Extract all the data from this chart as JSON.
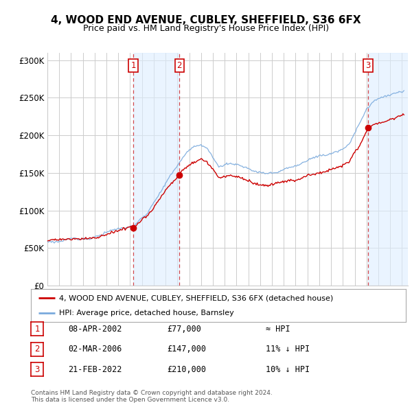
{
  "title": "4, WOOD END AVENUE, CUBLEY, SHEFFIELD, S36 6FX",
  "subtitle": "Price paid vs. HM Land Registry's House Price Index (HPI)",
  "ylabel_ticks": [
    "£0",
    "£50K",
    "£100K",
    "£150K",
    "£200K",
    "£250K",
    "£300K"
  ],
  "ytick_values": [
    0,
    50000,
    100000,
    150000,
    200000,
    250000,
    300000
  ],
  "ylim": [
    0,
    310000
  ],
  "xlim_start": 1995.0,
  "xlim_end": 2025.5,
  "transactions": [
    {
      "label": "1",
      "date": "08-APR-2002",
      "price": 77000,
      "year": 2002.27,
      "hpi_rel": "≈ HPI"
    },
    {
      "label": "2",
      "date": "02-MAR-2006",
      "price": 147000,
      "year": 2006.17,
      "hpi_rel": "11% ↓ HPI"
    },
    {
      "label": "3",
      "date": "21-FEB-2022",
      "price": 210000,
      "year": 2022.13,
      "hpi_rel": "10% ↓ HPI"
    }
  ],
  "legend_line1": "4, WOOD END AVENUE, CUBLEY, SHEFFIELD, S36 6FX (detached house)",
  "legend_line2": "HPI: Average price, detached house, Barnsley",
  "footer": "Contains HM Land Registry data © Crown copyright and database right 2024.\nThis data is licensed under the Open Government Licence v3.0.",
  "price_line_color": "#cc0000",
  "hpi_line_color": "#7aaadd",
  "shade_color": "#ddeeff",
  "transaction_box_color": "#cc0000",
  "background_color": "#ffffff",
  "grid_color": "#cccccc",
  "shade_alpha": 0.6
}
